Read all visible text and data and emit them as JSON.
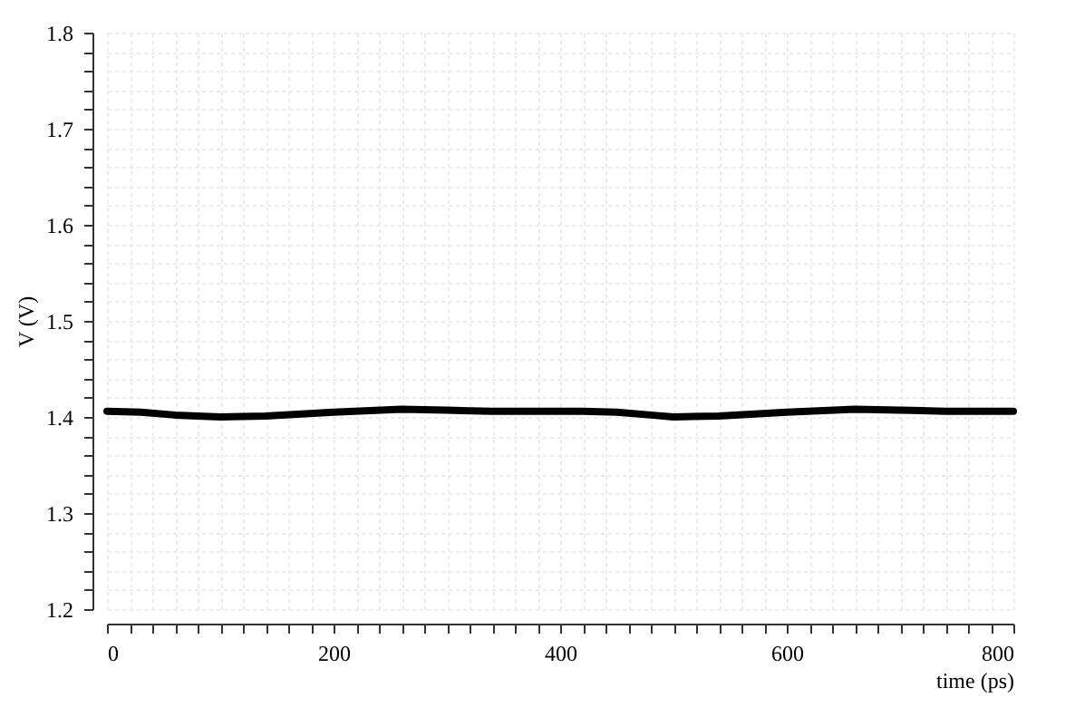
{
  "chart_data": {
    "type": "line",
    "xlabel": "time (ps)",
    "ylabel": "V (V)",
    "x": [
      0,
      30,
      60,
      100,
      140,
      200,
      260,
      300,
      340,
      380,
      420,
      450,
      480,
      500,
      540,
      600,
      660,
      700,
      740,
      800
    ],
    "series": [
      {
        "color": "#000000",
        "values": [
          1.406,
          1.405,
          1.402,
          1.4,
          1.401,
          1.405,
          1.408,
          1.407,
          1.406,
          1.406,
          1.406,
          1.405,
          1.402,
          1.4,
          1.401,
          1.405,
          1.408,
          1.407,
          1.406,
          1.406
        ]
      }
    ],
    "xlim": [
      0,
      800
    ],
    "ylim": [
      1.2,
      1.8
    ],
    "xticks": [
      0,
      {
        "value": 20,
        "label": null
      },
      {
        "value": 40,
        "label": null
      },
      {
        "value": 60,
        "label": null
      },
      {
        "value": 80,
        "label": null
      },
      {
        "value": 100,
        "label": null
      },
      {
        "value": 120,
        "label": null
      },
      {
        "value": 140,
        "label": null
      },
      {
        "value": 160,
        "label": null
      },
      {
        "value": 180,
        "label": null
      },
      200,
      {
        "value": 220,
        "label": null
      },
      {
        "value": 240,
        "label": null
      },
      {
        "value": 260,
        "label": null
      },
      {
        "value": 280,
        "label": null
      },
      {
        "value": 300,
        "label": null
      },
      {
        "value": 320,
        "label": null
      },
      {
        "value": 340,
        "label": null
      },
      {
        "value": 360,
        "label": null
      },
      {
        "value": 380,
        "label": null
      },
      400,
      {
        "value": 420,
        "label": null
      },
      {
        "value": 440,
        "label": null
      },
      {
        "value": 460,
        "label": null
      },
      {
        "value": 480,
        "label": null
      },
      {
        "value": 500,
        "label": null
      },
      {
        "value": 520,
        "label": null
      },
      {
        "value": 540,
        "label": null
      },
      {
        "value": 560,
        "label": null
      },
      {
        "value": 580,
        "label": null
      },
      600,
      {
        "value": 620,
        "label": null
      },
      {
        "value": 640,
        "label": null
      },
      {
        "value": 660,
        "label": null
      },
      {
        "value": 680,
        "label": null
      },
      {
        "value": 700,
        "label": null
      },
      {
        "value": 720,
        "label": null
      },
      {
        "value": 740,
        "label": null
      },
      {
        "value": 760,
        "label": null
      },
      {
        "value": 780,
        "label": null
      },
      800
    ],
    "yticks": [
      1.2,
      {
        "value": 1.22,
        "label": null
      },
      {
        "value": 1.24,
        "label": null
      },
      {
        "value": 1.26,
        "label": null
      },
      {
        "value": 1.28,
        "label": null
      },
      1.3,
      {
        "value": 1.32,
        "label": null
      },
      {
        "value": 1.34,
        "label": null
      },
      {
        "value": 1.36,
        "label": null
      },
      {
        "value": 1.38,
        "label": null
      },
      1.4,
      {
        "value": 1.42,
        "label": null
      },
      {
        "value": 1.44,
        "label": null
      },
      {
        "value": 1.46,
        "label": null
      },
      {
        "value": 1.48,
        "label": null
      },
      1.5,
      {
        "value": 1.52,
        "label": null
      },
      {
        "value": 1.54,
        "label": null
      },
      {
        "value": 1.56,
        "label": null
      },
      {
        "value": 1.58,
        "label": null
      },
      1.6,
      {
        "value": 1.62,
        "label": null
      },
      {
        "value": 1.64,
        "label": null
      },
      {
        "value": 1.66,
        "label": null
      },
      {
        "value": 1.68,
        "label": null
      },
      1.7,
      {
        "value": 1.72,
        "label": null
      },
      {
        "value": 1.74,
        "label": null
      },
      {
        "value": 1.76,
        "label": null
      },
      {
        "value": 1.78,
        "label": null
      },
      1.8
    ],
    "grid": true,
    "marker": "none",
    "line_style": "solid"
  }
}
